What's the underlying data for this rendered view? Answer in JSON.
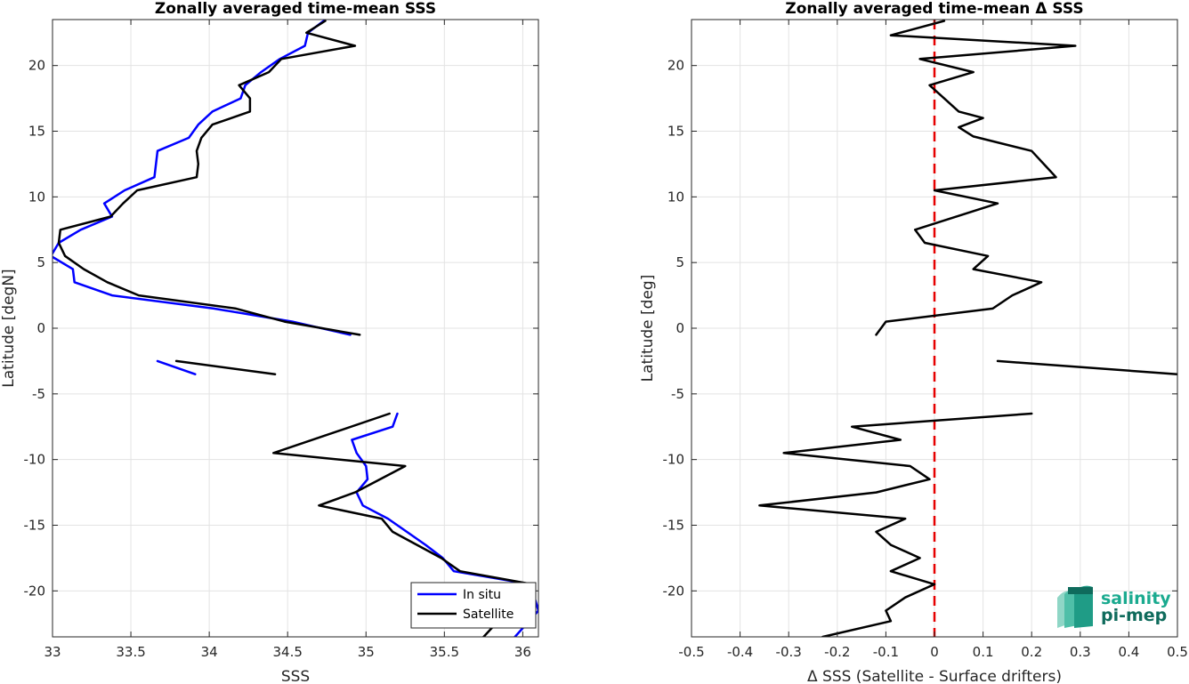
{
  "chart_data": [
    {
      "type": "line",
      "title": "Zonally averaged time-mean SSS",
      "xlabel": "SSS",
      "ylabel": "Latitude [degN]",
      "xlim": [
        33,
        36.1
      ],
      "ylim": [
        -23.5,
        23.5
      ],
      "xticks": [
        33,
        33.5,
        34,
        34.5,
        35,
        35.5,
        36
      ],
      "xtick_labels": [
        "33",
        "33.5",
        "34",
        "34.5",
        "35",
        "35.5",
        "36"
      ],
      "yticks": [
        -20,
        -15,
        -10,
        -5,
        0,
        5,
        10,
        15,
        20
      ],
      "ytick_labels": [
        "-20",
        "-15",
        "-10",
        "-5",
        "0",
        "5",
        "10",
        "15",
        "20"
      ],
      "grid": true,
      "legend": "bottom-right",
      "series": [
        {
          "name": "In situ",
          "color": "#0000ff",
          "segments": [
            [
              [
                34.73,
                23.4
              ],
              [
                34.63,
                22.5
              ],
              [
                34.61,
                21.5
              ],
              [
                34.45,
                20.5
              ],
              [
                34.33,
                19.5
              ],
              [
                34.23,
                18.5
              ],
              [
                34.2,
                17.5
              ],
              [
                34.02,
                16.5
              ],
              [
                33.93,
                15.5
              ],
              [
                33.87,
                14.5
              ],
              [
                33.67,
                13.5
              ],
              [
                33.65,
                11.5
              ],
              [
                33.46,
                10.5
              ],
              [
                33.33,
                9.5
              ],
              [
                33.38,
                8.5
              ],
              [
                33.18,
                7.5
              ],
              [
                33.04,
                6.5
              ],
              [
                32.99,
                5.5
              ],
              [
                33.13,
                4.5
              ],
              [
                33.14,
                3.5
              ],
              [
                33.38,
                2.5
              ],
              [
                34.03,
                1.5
              ],
              [
                34.53,
                0.5
              ],
              [
                34.9,
                -0.5
              ]
            ],
            [
              [
                33.67,
                -2.5
              ],
              [
                33.91,
                -3.5
              ]
            ],
            [
              [
                35.2,
                -6.5
              ],
              [
                35.17,
                -7.5
              ],
              [
                34.91,
                -8.5
              ],
              [
                34.94,
                -9.5
              ],
              [
                35.0,
                -10.5
              ],
              [
                35.01,
                -11.5
              ],
              [
                34.94,
                -12.5
              ],
              [
                34.98,
                -13.5
              ],
              [
                35.14,
                -14.5
              ],
              [
                35.26,
                -15.5
              ],
              [
                35.38,
                -16.5
              ],
              [
                35.49,
                -17.5
              ],
              [
                35.56,
                -18.5
              ],
              [
                36.05,
                -19.5
              ],
              [
                36.1,
                -21.5
              ],
              [
                35.95,
                -23.5
              ]
            ]
          ]
        },
        {
          "name": "Satellite",
          "color": "#000000",
          "segments": [
            [
              [
                34.74,
                23.4
              ],
              [
                34.62,
                22.5
              ],
              [
                34.93,
                21.5
              ],
              [
                34.46,
                20.5
              ],
              [
                34.38,
                19.5
              ],
              [
                34.19,
                18.5
              ],
              [
                34.26,
                17.5
              ],
              [
                34.26,
                16.5
              ],
              [
                34.02,
                15.5
              ],
              [
                33.95,
                14.5
              ],
              [
                33.92,
                13.5
              ],
              [
                33.93,
                12.5
              ],
              [
                33.92,
                11.5
              ],
              [
                33.54,
                10.5
              ],
              [
                33.45,
                9.5
              ],
              [
                33.37,
                8.5
              ],
              [
                33.05,
                7.5
              ],
              [
                33.04,
                6.5
              ],
              [
                33.08,
                5.5
              ],
              [
                33.2,
                4.5
              ],
              [
                33.35,
                3.5
              ],
              [
                33.55,
                2.5
              ],
              [
                34.17,
                1.5
              ],
              [
                34.48,
                0.5
              ],
              [
                34.96,
                -0.5
              ]
            ],
            [
              [
                33.79,
                -2.5
              ],
              [
                34.42,
                -3.5
              ]
            ],
            [
              [
                35.15,
                -6.5
              ],
              [
                34.41,
                -9.5
              ],
              [
                35.25,
                -10.5
              ],
              [
                34.93,
                -12.5
              ],
              [
                34.7,
                -13.5
              ],
              [
                35.1,
                -14.5
              ],
              [
                35.17,
                -15.5
              ],
              [
                35.48,
                -17.5
              ],
              [
                35.6,
                -18.5
              ],
              [
                36.06,
                -19.5
              ],
              [
                35.75,
                -23.5
              ]
            ]
          ]
        }
      ]
    },
    {
      "type": "line",
      "title": "Zonally averaged time-mean Δ SSS",
      "xlabel": "Δ SSS (Satellite - Surface drifters)",
      "ylabel": "Latitude [deg]",
      "xlim": [
        -0.5,
        0.5
      ],
      "ylim": [
        -23.5,
        23.5
      ],
      "xticks": [
        -0.5,
        -0.4,
        -0.3,
        -0.2,
        -0.1,
        0,
        0.1,
        0.2,
        0.3,
        0.4,
        0.5
      ],
      "xtick_labels": [
        "-0.5",
        "-0.4",
        "-0.3",
        "-0.2",
        "-0.1",
        "0",
        "0.1",
        "0.2",
        "0.3",
        "0.4",
        "0.5"
      ],
      "yticks": [
        -20,
        -15,
        -10,
        -5,
        0,
        5,
        10,
        15,
        20
      ],
      "ytick_labels": [
        "-20",
        "-15",
        "-10",
        "-5",
        "0",
        "5",
        "10",
        "15",
        "20"
      ],
      "grid": true,
      "reference_line": {
        "x": 0,
        "color": "#e60000",
        "style": "dashed"
      },
      "series": [
        {
          "color": "#000000",
          "segments": [
            [
              [
                0.02,
                23.4
              ],
              [
                -0.09,
                22.3
              ],
              [
                0.29,
                21.5
              ],
              [
                -0.03,
                20.5
              ],
              [
                0.08,
                19.5
              ],
              [
                -0.01,
                18.5
              ],
              [
                0.02,
                17.5
              ],
              [
                0.05,
                16.5
              ],
              [
                0.1,
                16.0
              ],
              [
                0.05,
                15.3
              ],
              [
                0.08,
                14.6
              ],
              [
                0.2,
                13.5
              ],
              [
                0.23,
                12.3
              ],
              [
                0.25,
                11.5
              ],
              [
                0.0,
                10.5
              ],
              [
                0.13,
                9.5
              ],
              [
                -0.04,
                7.5
              ],
              [
                -0.02,
                6.5
              ],
              [
                0.11,
                5.5
              ],
              [
                0.08,
                4.5
              ],
              [
                0.22,
                3.5
              ],
              [
                0.16,
                2.5
              ],
              [
                0.12,
                1.5
              ],
              [
                -0.1,
                0.5
              ],
              [
                -0.12,
                -0.5
              ]
            ],
            [
              [
                0.13,
                -2.5
              ],
              [
                0.5,
                -3.5
              ]
            ],
            [
              [
                0.2,
                -6.5
              ],
              [
                -0.17,
                -7.5
              ],
              [
                -0.07,
                -8.5
              ],
              [
                -0.31,
                -9.5
              ],
              [
                -0.05,
                -10.5
              ],
              [
                -0.01,
                -11.5
              ],
              [
                -0.12,
                -12.5
              ],
              [
                -0.36,
                -13.5
              ],
              [
                -0.06,
                -14.5
              ],
              [
                -0.12,
                -15.5
              ],
              [
                -0.09,
                -16.5
              ],
              [
                -0.03,
                -17.5
              ],
              [
                -0.09,
                -18.5
              ],
              [
                0.0,
                -19.5
              ],
              [
                -0.06,
                -20.5
              ],
              [
                -0.1,
                -21.5
              ],
              [
                -0.09,
                -22.3
              ],
              [
                -0.23,
                -23.5
              ]
            ]
          ]
        }
      ]
    }
  ],
  "legend": {
    "entries": [
      {
        "label": "In situ",
        "color": "#0000ff"
      },
      {
        "label": "Satellite",
        "color": "#000000"
      }
    ]
  },
  "logo": {
    "line1": "salinity",
    "line2": "pi-mep",
    "color1": "#1aaa8f",
    "color2": "#0f6b5c"
  }
}
